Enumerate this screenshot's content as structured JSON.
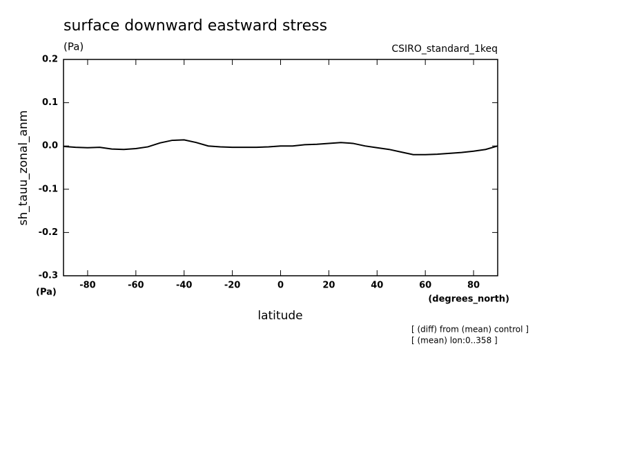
{
  "chart_data": {
    "type": "line",
    "title": "surface downward eastward stress",
    "subtitle": "(Pa)",
    "dataset": "CSIRO_standard_1keq",
    "y_label": "sh_tauu_zonal_anm",
    "y_units": "(Pa)",
    "x_label": "latitude",
    "x_units": "(degrees_north)",
    "annotations": [
      "[ (diff) from (mean) control ]",
      "[ (mean) lon:0..358 ]"
    ],
    "x": [
      -90,
      -85,
      -80,
      -75,
      -70,
      -65,
      -60,
      -55,
      -50,
      -45,
      -40,
      -35,
      -30,
      -25,
      -20,
      -15,
      -10,
      -5,
      0,
      5,
      10,
      15,
      20,
      25,
      30,
      35,
      40,
      45,
      50,
      55,
      60,
      65,
      70,
      75,
      80,
      85,
      90
    ],
    "series": [
      {
        "color": "#000000",
        "values": [
          -0.001,
          -0.003,
          -0.004,
          -0.003,
          -0.007,
          -0.008,
          -0.006,
          -0.002,
          0.007,
          0.013,
          0.014,
          0.008,
          0.0,
          -0.002,
          -0.003,
          -0.003,
          -0.003,
          -0.002,
          0.0,
          0.0,
          0.003,
          0.004,
          0.006,
          0.008,
          0.006,
          0.0,
          -0.004,
          -0.008,
          -0.014,
          -0.02,
          -0.02,
          -0.019,
          -0.017,
          -0.015,
          -0.012,
          -0.008,
          0.0
        ]
      }
    ],
    "xlim": [
      -90,
      90
    ],
    "ylim": [
      -0.3,
      0.2
    ],
    "xticks": [
      -80,
      -60,
      -40,
      -20,
      0,
      20,
      40,
      60,
      80
    ],
    "yticks": [
      -0.3,
      -0.2,
      -0.1,
      {
        "value": 0,
        "label": "0.0"
      },
      0.1,
      0.2
    ]
  }
}
